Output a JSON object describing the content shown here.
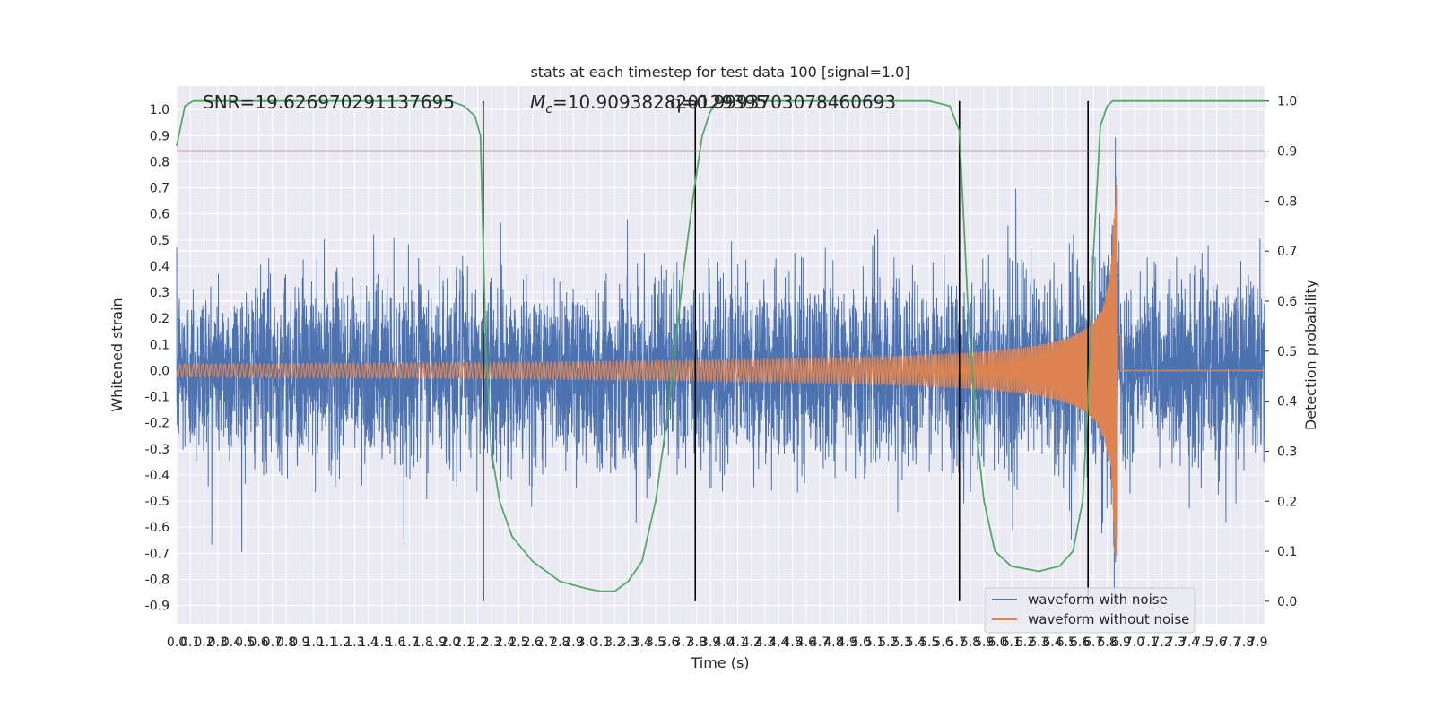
{
  "chart_data": {
    "type": "line",
    "title": "stats at each timestep for test data 100 [signal=1.0]",
    "xlabel": "Time (s)",
    "ylabel": "Whitened strain",
    "y2label": "Detection probability",
    "xlim": [
      0.0,
      7.95
    ],
    "ylim": [
      -0.97,
      1.09
    ],
    "y2lim": [
      -0.045,
      1.03
    ],
    "x_ticks": [
      "0.0",
      "0.1",
      "0.2",
      "0.3",
      "0.4",
      "0.5",
      "0.6",
      "0.7",
      "0.8",
      "0.9",
      "1.0",
      "1.1",
      "1.2",
      "1.3",
      "1.4",
      "1.5",
      "1.6",
      "1.7",
      "1.8",
      "1.9",
      "2.0",
      "2.1",
      "2.2",
      "2.3",
      "2.4",
      "2.5",
      "2.6",
      "2.7",
      "2.8",
      "2.9",
      "3.0",
      "3.1",
      "3.2",
      "3.3",
      "3.4",
      "3.5",
      "3.6",
      "3.7",
      "3.8",
      "3.9",
      "4.0",
      "4.1",
      "4.2",
      "4.3",
      "4.4",
      "4.5",
      "4.6",
      "4.7",
      "4.8",
      "4.9",
      "5.0",
      "5.1",
      "5.2",
      "5.3",
      "5.4",
      "5.5",
      "5.6",
      "5.7",
      "5.8",
      "5.9",
      "6.0",
      "6.1",
      "6.2",
      "6.3",
      "6.4",
      "6.5",
      "6.6",
      "6.7",
      "6.8",
      "6.9",
      "7.0",
      "7.1",
      "7.2",
      "7.3",
      "7.4",
      "7.5",
      "7.6",
      "7.7",
      "7.8",
      "7.9"
    ],
    "y_ticks": [
      "1.0",
      "0.9",
      "0.8",
      "0.7",
      "0.6",
      "0.5",
      "0.4",
      "0.3",
      "0.2",
      "0.1",
      "0.0",
      "-0.1",
      "-0.2",
      "-0.3",
      "-0.4",
      "-0.5",
      "-0.6",
      "-0.7",
      "-0.8",
      "-0.9"
    ],
    "y2_ticks": [
      "1.0",
      "0.9",
      "0.8",
      "0.7",
      "0.6",
      "0.5",
      "0.4",
      "0.3",
      "0.2",
      "0.1",
      "0.0"
    ],
    "annotations": {
      "snr": "SNR=19.626970291137695",
      "mc_prefix": "M",
      "mc_sub": "c",
      "mc_value": "=10.909382820129395",
      "q_text": "q=0.9993703078460693"
    },
    "threshold": 0.9,
    "vlines_x": [
      2.24,
      3.79,
      5.72,
      6.66
    ],
    "merger_time": 6.87,
    "series": [
      {
        "name": "waveform with noise",
        "color": "#4c72b0",
        "axis": "left",
        "noise_std": 0.17,
        "peak": 0.86
      },
      {
        "name": "waveform without noise",
        "color": "#dd8452",
        "axis": "left",
        "amplitude_start": 0.025,
        "amplitude_peak": 0.71
      },
      {
        "color": "#55a868",
        "axis": "right",
        "x": [
          0.0,
          0.06,
          0.12,
          0.3,
          0.6,
          1.0,
          1.5,
          2.0,
          2.1,
          2.18,
          2.22,
          2.26,
          2.3,
          2.36,
          2.45,
          2.6,
          2.8,
          3.0,
          3.1,
          3.2,
          3.3,
          3.4,
          3.5,
          3.6,
          3.7,
          3.78,
          3.84,
          3.9,
          3.97,
          4.1,
          4.5,
          5.0,
          5.5,
          5.65,
          5.72,
          5.78,
          5.84,
          5.9,
          5.98,
          6.1,
          6.3,
          6.45,
          6.55,
          6.62,
          6.66,
          6.7,
          6.75,
          6.8,
          6.84,
          6.88,
          7.0,
          7.5,
          7.95
        ],
        "y": [
          0.91,
          0.99,
          1.0,
          1.0,
          1.0,
          1.0,
          1.0,
          1.0,
          0.99,
          0.97,
          0.93,
          0.5,
          0.3,
          0.2,
          0.13,
          0.08,
          0.04,
          0.025,
          0.02,
          0.02,
          0.04,
          0.08,
          0.2,
          0.4,
          0.65,
          0.82,
          0.93,
          0.98,
          1.0,
          1.0,
          1.0,
          1.0,
          1.0,
          0.99,
          0.94,
          0.6,
          0.35,
          0.2,
          0.1,
          0.07,
          0.06,
          0.07,
          0.1,
          0.2,
          0.4,
          0.7,
          0.95,
          0.99,
          1.0,
          1.0,
          1.0,
          1.0,
          1.0
        ]
      },
      {
        "color": "#c44e52",
        "axis": "right",
        "y": 0.9
      }
    ],
    "legend_location": "lower right",
    "grid": true,
    "colors": {
      "plot_background": "#eaeaf2",
      "grid": "#ffffff",
      "vlines": "#000000"
    }
  }
}
